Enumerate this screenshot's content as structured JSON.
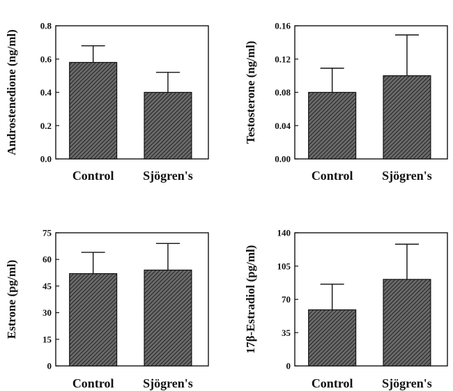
{
  "chart_data": [
    {
      "type": "bar",
      "ylabel": "Androstenedione (ng/ml)",
      "categories": [
        "Control",
        "Sjögren's"
      ],
      "values": [
        0.58,
        0.4
      ],
      "errors": [
        0.1,
        0.12
      ],
      "ylim": [
        0,
        0.8
      ],
      "yticks": [
        "0.0",
        "0.2",
        "0.4",
        "0.6",
        "0.8"
      ],
      "ytick_values": [
        0,
        0.2,
        0.4,
        0.6,
        0.8
      ]
    },
    {
      "type": "bar",
      "ylabel": "Testosterone (ng/ml)",
      "categories": [
        "Control",
        "Sjögren's"
      ],
      "values": [
        0.08,
        0.1
      ],
      "errors": [
        0.029,
        0.049
      ],
      "ylim": [
        0,
        0.16
      ],
      "yticks": [
        "0.00",
        "0.04",
        "0.08",
        "0.12",
        "0.16"
      ],
      "ytick_values": [
        0,
        0.04,
        0.08,
        0.12,
        0.16
      ]
    },
    {
      "type": "bar",
      "ylabel": "Estrone (pg/ml)",
      "categories": [
        "Control",
        "Sjögren's"
      ],
      "values": [
        52,
        54
      ],
      "errors": [
        12,
        15
      ],
      "ylim": [
        0,
        75
      ],
      "yticks": [
        "0",
        "15",
        "30",
        "45",
        "60",
        "75"
      ],
      "ytick_values": [
        0,
        15,
        30,
        45,
        60,
        75
      ]
    },
    {
      "type": "bar",
      "ylabel": "17β-Estradiol (pg/ml)",
      "categories": [
        "Control",
        "Sjögren's"
      ],
      "values": [
        59,
        91
      ],
      "errors": [
        27,
        37
      ],
      "ylim": [
        0,
        140
      ],
      "yticks": [
        "0",
        "35",
        "70",
        "105",
        "140"
      ],
      "ytick_values": [
        0,
        35,
        70,
        105,
        140
      ]
    }
  ]
}
